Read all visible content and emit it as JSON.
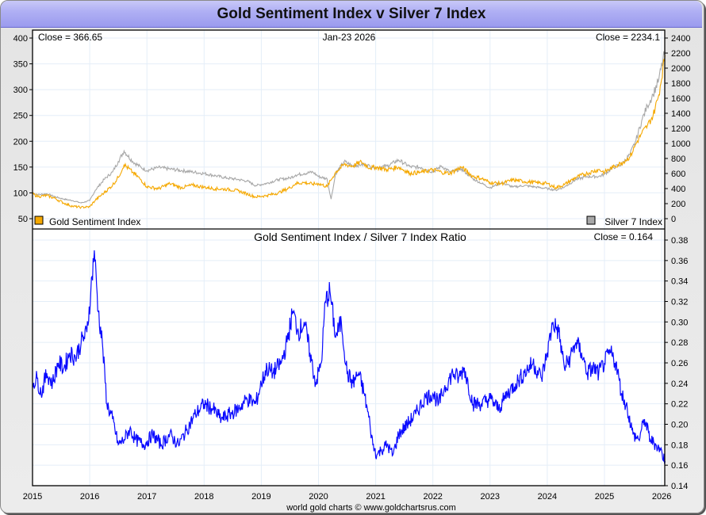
{
  "window": {
    "title": "Gold Sentiment Index v Silver 7 Index"
  },
  "footer": {
    "credit": "world gold charts © www.goldchartsrus.com"
  },
  "colors": {
    "gold": "#f5a800",
    "silver": "#a8a8a8",
    "ratio": "#0a0aff",
    "grid": "#e4eef8",
    "title_bg": "#b0b0f4"
  },
  "chart_data": [
    {
      "type": "line",
      "title": "Gold Sentiment Index v Silver 7 Index",
      "date_label": "Jan-23  2026",
      "x_ticks": [
        "2015",
        "2016",
        "2017",
        "2018",
        "2019",
        "2020",
        "2021",
        "2022",
        "2023",
        "2024",
        "2025",
        "2026"
      ],
      "x_range": [
        2015.0,
        2026.06
      ],
      "left_axis": {
        "ticks": [
          50,
          100,
          150,
          200,
          250,
          300,
          350,
          400
        ],
        "range": [
          50,
          400
        ]
      },
      "right_axis": {
        "ticks": [
          0,
          200,
          400,
          600,
          800,
          1000,
          1200,
          1400,
          1600,
          1800,
          2000,
          2200,
          2400
        ],
        "range": [
          0,
          2400
        ]
      },
      "grid": true,
      "legend": [
        {
          "name": "Gold Sentiment Index",
          "placement": "bottom-left",
          "close_label": "Close = 366.65"
        },
        {
          "name": "Silver 7 Index",
          "placement": "bottom-right",
          "close_label": "Close = 2234.1"
        }
      ],
      "series": [
        {
          "name": "Gold Sentiment Index",
          "axis": "left",
          "close": 366.65,
          "x": [
            2015.0,
            2015.1,
            2015.25,
            2015.4,
            2015.55,
            2015.7,
            2015.85,
            2016.0,
            2016.1,
            2016.25,
            2016.4,
            2016.5,
            2016.6,
            2016.75,
            2016.9,
            2017.0,
            2017.2,
            2017.4,
            2017.6,
            2017.8,
            2018.0,
            2018.2,
            2018.4,
            2018.6,
            2018.75,
            2018.9,
            2019.1,
            2019.3,
            2019.5,
            2019.6,
            2019.75,
            2019.9,
            2020.0,
            2020.15,
            2020.22,
            2020.3,
            2020.45,
            2020.6,
            2020.75,
            2020.9,
            2021.0,
            2021.2,
            2021.4,
            2021.6,
            2021.8,
            2022.0,
            2022.15,
            2022.3,
            2022.5,
            2022.7,
            2022.85,
            2023.0,
            2023.2,
            2023.4,
            2023.6,
            2023.8,
            2024.0,
            2024.15,
            2024.3,
            2024.5,
            2024.7,
            2024.9,
            2025.0,
            2025.15,
            2025.3,
            2025.45,
            2025.55,
            2025.65,
            2025.75,
            2025.85,
            2025.95,
            2026.06
          ],
          "values": [
            98,
            93,
            95,
            89,
            80,
            74,
            72,
            73,
            86,
            100,
            115,
            130,
            155,
            140,
            125,
            112,
            108,
            118,
            110,
            115,
            111,
            108,
            107,
            104,
            98,
            92,
            95,
            100,
            110,
            118,
            120,
            117,
            118,
            112,
            125,
            140,
            155,
            152,
            160,
            148,
            150,
            145,
            150,
            138,
            140,
            145,
            140,
            138,
            150,
            132,
            128,
            120,
            118,
            125,
            122,
            120,
            118,
            110,
            116,
            130,
            138,
            145,
            140,
            150,
            158,
            170,
            195,
            215,
            230,
            250,
            290,
            366.65
          ]
        },
        {
          "name": "Silver 7 Index",
          "axis": "right",
          "close": 2234.1,
          "x": [
            2015.0,
            2015.1,
            2015.25,
            2015.4,
            2015.55,
            2015.7,
            2015.85,
            2016.0,
            2016.1,
            2016.25,
            2016.4,
            2016.5,
            2016.6,
            2016.75,
            2016.9,
            2017.0,
            2017.2,
            2017.4,
            2017.6,
            2017.8,
            2018.0,
            2018.2,
            2018.4,
            2018.6,
            2018.75,
            2018.9,
            2019.1,
            2019.3,
            2019.5,
            2019.6,
            2019.75,
            2019.9,
            2020.0,
            2020.15,
            2020.22,
            2020.3,
            2020.45,
            2020.6,
            2020.75,
            2020.9,
            2021.0,
            2021.2,
            2021.4,
            2021.6,
            2021.8,
            2022.0,
            2022.15,
            2022.3,
            2022.5,
            2022.7,
            2022.85,
            2023.0,
            2023.2,
            2023.4,
            2023.6,
            2023.8,
            2024.0,
            2024.15,
            2024.3,
            2024.5,
            2024.7,
            2024.9,
            2025.0,
            2025.15,
            2025.3,
            2025.45,
            2025.55,
            2025.65,
            2025.75,
            2025.85,
            2025.95,
            2026.06
          ],
          "values": [
            340,
            320,
            330,
            290,
            260,
            240,
            210,
            240,
            380,
            520,
            620,
            760,
            900,
            760,
            680,
            640,
            680,
            660,
            640,
            620,
            600,
            570,
            540,
            520,
            500,
            440,
            470,
            520,
            540,
            580,
            600,
            620,
            560,
            530,
            260,
            600,
            760,
            700,
            720,
            700,
            680,
            700,
            780,
            690,
            680,
            620,
            700,
            620,
            660,
            530,
            470,
            410,
            480,
            420,
            440,
            420,
            400,
            380,
            420,
            520,
            560,
            560,
            590,
            680,
            720,
            860,
            1040,
            1300,
            1500,
            1650,
            1850,
            2234.1
          ]
        }
      ]
    },
    {
      "type": "line",
      "title": "Gold Sentiment Index  /  Silver 7 Index Ratio",
      "close_label": "Close = 0.164",
      "x_ticks": [
        "2015",
        "2016",
        "2017",
        "2018",
        "2019",
        "2020",
        "2021",
        "2022",
        "2023",
        "2024",
        "2025",
        "2026"
      ],
      "x_range": [
        2015.0,
        2026.06
      ],
      "right_axis": {
        "ticks": [
          "0.14",
          "0.16",
          "0.18",
          "0.20",
          "0.22",
          "0.24",
          "0.26",
          "0.28",
          "0.30",
          "0.32",
          "0.34",
          "0.36",
          "0.38"
        ],
        "range": [
          0.14,
          0.38
        ]
      },
      "grid": true,
      "series": [
        {
          "name": "Gold Sentiment Index / Silver 7 Index Ratio",
          "close": 0.164,
          "x": [
            2015.0,
            2015.08,
            2015.15,
            2015.25,
            2015.35,
            2015.45,
            2015.55,
            2015.65,
            2015.75,
            2015.85,
            2015.95,
            2016.02,
            2016.08,
            2016.15,
            2016.22,
            2016.3,
            2016.4,
            2016.5,
            2016.6,
            2016.7,
            2016.8,
            2016.95,
            2017.1,
            2017.25,
            2017.4,
            2017.55,
            2017.7,
            2017.85,
            2018.0,
            2018.15,
            2018.3,
            2018.45,
            2018.6,
            2018.75,
            2018.9,
            2019.0,
            2019.1,
            2019.2,
            2019.35,
            2019.45,
            2019.55,
            2019.65,
            2019.75,
            2019.85,
            2019.95,
            2020.05,
            2020.12,
            2020.2,
            2020.3,
            2020.4,
            2020.5,
            2020.6,
            2020.7,
            2020.8,
            2020.9,
            2020.95,
            2021.02,
            2021.1,
            2021.2,
            2021.3,
            2021.4,
            2021.55,
            2021.7,
            2021.85,
            2022.0,
            2022.1,
            2022.2,
            2022.35,
            2022.45,
            2022.55,
            2022.7,
            2022.85,
            2023.0,
            2023.15,
            2023.3,
            2023.45,
            2023.6,
            2023.75,
            2023.9,
            2024.0,
            2024.1,
            2024.2,
            2024.3,
            2024.4,
            2024.5,
            2024.6,
            2024.7,
            2024.8,
            2024.9,
            2025.0,
            2025.1,
            2025.2,
            2025.3,
            2025.4,
            2025.5,
            2025.6,
            2025.7,
            2025.8,
            2025.9,
            2025.98,
            2026.06
          ],
          "values": [
            0.24,
            0.245,
            0.23,
            0.25,
            0.24,
            0.26,
            0.255,
            0.27,
            0.265,
            0.28,
            0.29,
            0.33,
            0.37,
            0.31,
            0.28,
            0.22,
            0.205,
            0.18,
            0.185,
            0.195,
            0.185,
            0.18,
            0.19,
            0.18,
            0.19,
            0.18,
            0.195,
            0.21,
            0.22,
            0.215,
            0.205,
            0.21,
            0.215,
            0.225,
            0.22,
            0.24,
            0.255,
            0.25,
            0.26,
            0.28,
            0.31,
            0.29,
            0.3,
            0.27,
            0.24,
            0.26,
            0.32,
            0.33,
            0.285,
            0.3,
            0.25,
            0.24,
            0.25,
            0.23,
            0.2,
            0.18,
            0.17,
            0.175,
            0.18,
            0.17,
            0.19,
            0.2,
            0.21,
            0.225,
            0.23,
            0.22,
            0.235,
            0.25,
            0.245,
            0.255,
            0.22,
            0.22,
            0.225,
            0.215,
            0.23,
            0.24,
            0.25,
            0.26,
            0.245,
            0.27,
            0.3,
            0.29,
            0.255,
            0.265,
            0.28,
            0.27,
            0.25,
            0.255,
            0.25,
            0.26,
            0.27,
            0.26,
            0.23,
            0.215,
            0.19,
            0.185,
            0.205,
            0.185,
            0.18,
            0.175,
            0.164
          ]
        }
      ]
    }
  ]
}
